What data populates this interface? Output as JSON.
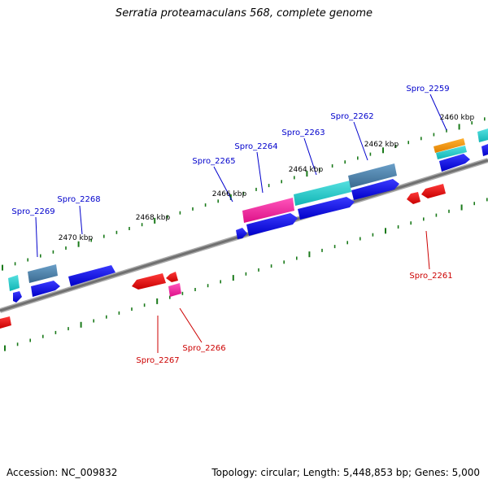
{
  "title": "Serratia proteamaculans 568, complete genome",
  "footer": {
    "accession": "Accession: NC_009832",
    "summary": "Topology: circular; Length: 5,448,853 bp; Genes: 5,000"
  },
  "colors": {
    "backbone": "#808080",
    "tick": "#1a7a1a",
    "forward_label": "#0000cc",
    "reverse_label": "#cc0000",
    "cds_forward": "#0000ee",
    "cds_reverse": "#ee0000",
    "pink": "#ee2299",
    "cyan": "#22cccc",
    "steel": "#4a7fa8",
    "orange": "#ff9900"
  },
  "scale_labels": [
    "2470 kbp",
    "2468 kbp",
    "2466 kbp",
    "2464 kbp",
    "2462 kbp",
    "2460 kbp"
  ],
  "forward_genes": [
    "Spro_2269",
    "Spro_2268",
    "Spro_2265",
    "Spro_2264",
    "Spro_2263",
    "Spro_2262",
    "Spro_2259"
  ],
  "reverse_genes": [
    "Spro_2267",
    "Spro_2266",
    "Spro_2261"
  ]
}
